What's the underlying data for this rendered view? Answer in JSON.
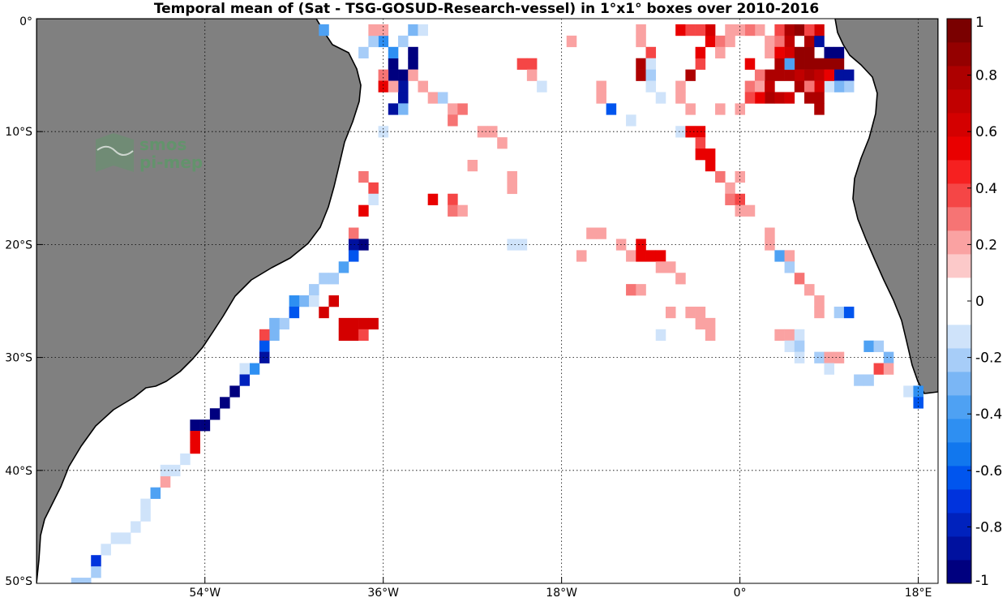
{
  "title": "Temporal mean of (Sat - TSG-GOSUD-Research-vessel) in 1°x1° boxes over 2010-2016",
  "logo": {
    "line1": "smos",
    "line2": "pi-mep",
    "color": "#5a9a66"
  },
  "map": {
    "lon_range": [
      -71,
      20
    ],
    "lat_range": [
      -50,
      0
    ],
    "land_color": "#808080",
    "coast_color": "#000000",
    "grid_style": "dotted",
    "x_ticks": [
      {
        "lon": -54,
        "label": "54°W"
      },
      {
        "lon": -36,
        "label": "36°W"
      },
      {
        "lon": -18,
        "label": "18°W"
      },
      {
        "lon": 0,
        "label": "0°"
      },
      {
        "lon": 18,
        "label": "18°E"
      }
    ],
    "y_ticks": [
      {
        "lat": 0,
        "label": "0°"
      },
      {
        "lat": -10,
        "label": "10°S"
      },
      {
        "lat": -20,
        "label": "20°S"
      },
      {
        "lat": -30,
        "label": "30°S"
      },
      {
        "lat": -40,
        "label": "40°S"
      },
      {
        "lat": -50,
        "label": "50°S"
      }
    ]
  },
  "colorbar": {
    "min": -1,
    "max": 1,
    "ticks": [
      {
        "value": 1,
        "label": "1"
      },
      {
        "value": 0.8,
        "label": "0.8"
      },
      {
        "value": 0.6,
        "label": "0.6"
      },
      {
        "value": 0.4,
        "label": "0.4"
      },
      {
        "value": 0.2,
        "label": "0.2"
      },
      {
        "value": 0,
        "label": "0"
      },
      {
        "value": -0.2,
        "label": "-0.2"
      },
      {
        "value": -0.4,
        "label": "-0.4"
      },
      {
        "value": -0.6,
        "label": "-0.6"
      },
      {
        "value": -0.8,
        "label": "-0.8"
      },
      {
        "value": -1,
        "label": "-1"
      }
    ],
    "colors_low_to_high": [
      "#00007f",
      "#00119f",
      "#0022bd",
      "#0033dd",
      "#0055ee",
      "#1177ee",
      "#2e8ff2",
      "#4ea1f3",
      "#7ab6f5",
      "#a7cdf8",
      "#cfe3fa",
      "#ffffff",
      "#ffffff",
      "#fcc9c9",
      "#faa2a2",
      "#f67474",
      "#f54646",
      "#f62020",
      "#e90000",
      "#d40000",
      "#c10000",
      "#ad0000",
      "#940000",
      "#7a0000"
    ]
  },
  "chart_data": {
    "type": "heatmap",
    "title": "Temporal mean of (Sat - TSG-GOSUD-Research-vessel) in 1°x1° boxes over 2010-2016",
    "value_range": [
      -1,
      1
    ],
    "cells_lon_lat_value": [
      [
        -35,
        -4,
        -1
      ],
      [
        -35,
        -5,
        -1
      ],
      [
        -34,
        -5,
        -1
      ],
      [
        -33,
        -3,
        -1
      ],
      [
        -33,
        -4,
        -1
      ],
      [
        -34,
        -6,
        -0.9
      ],
      [
        -34,
        -7,
        -0.9
      ],
      [
        -35,
        -8,
        -0.9
      ],
      [
        -34,
        -8,
        -0.3
      ],
      [
        -33,
        -1,
        -0.3
      ],
      [
        -34,
        -2,
        -0.2
      ],
      [
        -35,
        -3,
        -0.5
      ],
      [
        -36,
        -2,
        -0.5
      ],
      [
        -38,
        -3,
        -0.2
      ],
      [
        -37,
        -2,
        -0.2
      ],
      [
        -36,
        -10,
        -0.1
      ],
      [
        -32,
        -1,
        -0.1
      ],
      [
        -42,
        -1,
        -0.4
      ],
      [
        -36,
        -1,
        0.2
      ],
      [
        -37,
        -1,
        0.2
      ],
      [
        -36,
        -5,
        0.3
      ],
      [
        -36,
        -6,
        0.5
      ],
      [
        -35,
        -6,
        0.2
      ],
      [
        -33,
        -5,
        0.2
      ],
      [
        -32,
        -6,
        0.2
      ],
      [
        -31,
        -7,
        0.2
      ],
      [
        -30,
        -7,
        -0.2
      ],
      [
        -29,
        -8,
        0.2
      ],
      [
        -28,
        -8,
        0.3
      ],
      [
        -29,
        -9,
        0.3
      ],
      [
        -26,
        -10,
        0.2
      ],
      [
        -25,
        -10,
        0.2
      ],
      [
        -24,
        -11,
        0.2
      ],
      [
        -22,
        -4,
        0.4
      ],
      [
        -21,
        -4,
        0.4
      ],
      [
        -21,
        -5,
        0.2
      ],
      [
        -20,
        -6,
        -0.1
      ],
      [
        -17,
        -2,
        0.2
      ],
      [
        -14,
        -6,
        0.2
      ],
      [
        -14,
        -7,
        0.2
      ],
      [
        -13,
        -8,
        -0.6
      ],
      [
        -10,
        -1,
        0.2
      ],
      [
        -10,
        -2,
        0.2
      ],
      [
        -10,
        -4,
        0.8
      ],
      [
        -10,
        -5,
        0.8
      ],
      [
        -9,
        -3,
        0.4
      ],
      [
        -9,
        -4,
        -0.1
      ],
      [
        -9,
        -5,
        -0.2
      ],
      [
        -9,
        -6,
        -0.1
      ],
      [
        -8,
        -7,
        -0.1
      ],
      [
        -11,
        -9,
        -0.1
      ],
      [
        -6,
        -6,
        0.2
      ],
      [
        -6,
        -7,
        0.2
      ],
      [
        -5,
        -8,
        0.2
      ],
      [
        -5,
        -5,
        0.8
      ],
      [
        -4,
        -4,
        0.4
      ],
      [
        -4,
        -3,
        0.5
      ],
      [
        -3,
        -2,
        0.5
      ],
      [
        -3,
        -1,
        0.6
      ],
      [
        -2,
        -2,
        0.3
      ],
      [
        -2,
        -3,
        0.2
      ],
      [
        -1,
        -1,
        0.2
      ],
      [
        -1,
        -2,
        0.2
      ],
      [
        -6,
        -1,
        0.5
      ],
      [
        -5,
        -1,
        0.4
      ],
      [
        -4,
        -1,
        0.4
      ],
      [
        -2,
        -8,
        0.2
      ],
      [
        0,
        -8,
        0.2
      ],
      [
        -6,
        -10,
        -0.1
      ],
      [
        -5,
        -10,
        0.5
      ],
      [
        -4,
        -10,
        0.5
      ],
      [
        -4,
        -11,
        0.4
      ],
      [
        -4,
        -12,
        0.5
      ],
      [
        -3,
        -12,
        0.5
      ],
      [
        -3,
        -13,
        0.5
      ],
      [
        -2,
        -14,
        0.3
      ],
      [
        -1,
        -15,
        0.2
      ],
      [
        -1,
        -16,
        0.3
      ],
      [
        0,
        -16,
        0.4
      ],
      [
        0,
        -17,
        0.2
      ],
      [
        1,
        -17,
        0.2
      ],
      [
        0,
        -14,
        0.2
      ],
      [
        -7,
        -26,
        0.2
      ],
      [
        -5,
        -26,
        0.2
      ],
      [
        -4,
        -26,
        0.2
      ],
      [
        -3,
        -27,
        0.2
      ],
      [
        -4,
        -27,
        0.2
      ],
      [
        -3,
        -28,
        0.2
      ],
      [
        -8,
        -28,
        -0.1
      ],
      [
        -14,
        -19,
        0.2
      ],
      [
        -15,
        -19,
        0.2
      ],
      [
        -12,
        -20,
        0.2
      ],
      [
        -11,
        -21,
        0.2
      ],
      [
        -10,
        -20,
        0.5
      ],
      [
        -10,
        -21,
        0.5
      ],
      [
        -9,
        -21,
        0.5
      ],
      [
        -8,
        -21,
        0.5
      ],
      [
        -8,
        -22,
        0.2
      ],
      [
        -7,
        -22,
        0.2
      ],
      [
        -6,
        -23,
        0.2
      ],
      [
        -11,
        -24,
        0.3
      ],
      [
        -10,
        -24,
        0.2
      ],
      [
        -16,
        -21,
        0.2
      ],
      [
        -23,
        -20,
        -0.1
      ],
      [
        -22,
        -20,
        -0.1
      ],
      [
        -31,
        -16,
        0.5
      ],
      [
        -29,
        -16,
        0.4
      ],
      [
        -29,
        -17,
        0.3
      ],
      [
        -28,
        -17,
        0.2
      ],
      [
        -27,
        -13,
        0.2
      ],
      [
        -23,
        -14,
        0.2
      ],
      [
        -23,
        -15,
        0.2
      ],
      [
        -38,
        -14,
        0.3
      ],
      [
        -37,
        -15,
        0.4
      ],
      [
        -38,
        -17,
        0.5
      ],
      [
        -37,
        -16,
        -0.1
      ],
      [
        -39,
        -19,
        0.3
      ],
      [
        -38,
        -20,
        -1
      ],
      [
        -39,
        -20,
        -0.9
      ],
      [
        -39,
        -21,
        -0.6
      ],
      [
        -40,
        -22,
        -0.4
      ],
      [
        -41,
        -23,
        -0.2
      ],
      [
        -42,
        -23,
        -0.2
      ],
      [
        -43,
        -24,
        -0.2
      ],
      [
        -44,
        -25,
        -0.3
      ],
      [
        -43,
        -25,
        -0.1
      ],
      [
        -45,
        -25,
        -0.5
      ],
      [
        -45,
        -26,
        -0.6
      ],
      [
        -46,
        -27,
        -0.2
      ],
      [
        -47,
        -27,
        -0.3
      ],
      [
        -47,
        -28,
        -0.3
      ],
      [
        -48,
        -28,
        0.4
      ],
      [
        -48,
        -29,
        -0.6
      ],
      [
        -48,
        -30,
        -0.9
      ],
      [
        -49,
        -31,
        -0.5
      ],
      [
        -50,
        -31,
        -0.1
      ],
      [
        -50,
        -32,
        -0.8
      ],
      [
        -51,
        -33,
        -1
      ],
      [
        -52,
        -34,
        -1
      ],
      [
        -53,
        -35,
        -1
      ],
      [
        -54,
        -36,
        -1
      ],
      [
        -55,
        -36,
        -1
      ],
      [
        -55,
        -37,
        0.5
      ],
      [
        -55,
        -38,
        0.5
      ],
      [
        -56,
        -39,
        -0.1
      ],
      [
        -57,
        -40,
        -0.1
      ],
      [
        -58,
        -41,
        0.2
      ],
      [
        -58,
        -40,
        -0.1
      ],
      [
        -59,
        -42,
        -0.4
      ],
      [
        -60,
        -43,
        -0.1
      ],
      [
        -60,
        -44,
        -0.1
      ],
      [
        -61,
        -45,
        -0.1
      ],
      [
        -62,
        -46,
        -0.1
      ],
      [
        -63,
        -46,
        -0.1
      ],
      [
        -64,
        -47,
        -0.1
      ],
      [
        -65,
        -48,
        -0.7
      ],
      [
        -65,
        -49,
        -0.2
      ],
      [
        -66,
        -50,
        -0.2
      ],
      [
        -67,
        -50,
        -0.2
      ],
      [
        -42,
        -26,
        0.6
      ],
      [
        -41,
        -25,
        0.6
      ],
      [
        -40,
        -27,
        0.6
      ],
      [
        -39,
        -27,
        0.6
      ],
      [
        -38,
        -27,
        0.6
      ],
      [
        -37,
        -27,
        0.6
      ],
      [
        -40,
        -28,
        0.6
      ],
      [
        -39,
        -28,
        0.6
      ],
      [
        -38,
        -28,
        0.4
      ],
      [
        3,
        -2,
        0.2
      ],
      [
        3,
        -3,
        0.2
      ],
      [
        4,
        -2,
        0.3
      ],
      [
        4,
        -1,
        0.4
      ],
      [
        4,
        -4,
        0.8
      ],
      [
        5,
        -1,
        0.8
      ],
      [
        5,
        -2,
        0.7
      ],
      [
        5,
        -3,
        0.6
      ],
      [
        6,
        -1,
        0.9
      ],
      [
        6,
        -3,
        0.9
      ],
      [
        6,
        -4,
        0.9
      ],
      [
        7,
        -3,
        0.9
      ],
      [
        7,
        -4,
        0.9
      ],
      [
        8,
        -4,
        0.9
      ],
      [
        9,
        -4,
        0.9
      ],
      [
        10,
        -4,
        0.9
      ],
      [
        7,
        -2,
        0.8
      ],
      [
        8,
        -2,
        -0.9
      ],
      [
        9,
        -3,
        -1
      ],
      [
        10,
        -5,
        -0.9
      ],
      [
        11,
        -5,
        -0.9
      ],
      [
        11,
        -6,
        -0.2
      ],
      [
        10,
        -6,
        -0.3
      ],
      [
        9,
        -6,
        -0.1
      ],
      [
        8,
        -1,
        0.6
      ],
      [
        7,
        -1,
        0.4
      ],
      [
        6,
        -5,
        0.7
      ],
      [
        6,
        -6,
        0.8
      ],
      [
        5,
        -5,
        0.8
      ],
      [
        4,
        -5,
        0.8
      ],
      [
        3,
        -5,
        0.8
      ],
      [
        2,
        -5,
        0.3
      ],
      [
        1,
        -4,
        0.5
      ],
      [
        1,
        -6,
        0.3
      ],
      [
        2,
        -6,
        0.2
      ],
      [
        3,
        -6,
        0.7
      ],
      [
        3,
        -7,
        0.8
      ],
      [
        4,
        -7,
        0.7
      ],
      [
        5,
        -7,
        0.6
      ],
      [
        7,
        -5,
        0.8
      ],
      [
        8,
        -5,
        0.7
      ],
      [
        8,
        -6,
        0.6
      ],
      [
        7,
        -6,
        0.3
      ],
      [
        7,
        -7,
        0.8
      ],
      [
        8,
        -7,
        0.8
      ],
      [
        8,
        -8,
        0.8
      ],
      [
        2,
        -7,
        0.5
      ],
      [
        1,
        -7,
        0.4
      ],
      [
        5,
        -4,
        -0.4
      ],
      [
        4,
        -3,
        0.5
      ],
      [
        9,
        -5,
        0.5
      ],
      [
        10,
        -3,
        -1
      ],
      [
        2,
        -1,
        0.2
      ],
      [
        1,
        -1,
        0.3
      ],
      [
        0,
        -1,
        0.2
      ],
      [
        3,
        -19,
        0.2
      ],
      [
        3,
        -20,
        0.2
      ],
      [
        4,
        -21,
        -0.4
      ],
      [
        5,
        -21,
        0.2
      ],
      [
        5,
        -22,
        -0.2
      ],
      [
        6,
        -23,
        0.3
      ],
      [
        7,
        -24,
        0.2
      ],
      [
        8,
        -25,
        0.2
      ],
      [
        8,
        -26,
        0.2
      ],
      [
        10,
        -26,
        -0.2
      ],
      [
        11,
        -26,
        -0.6
      ],
      [
        4,
        -28,
        0.2
      ],
      [
        5,
        -28,
        0.2
      ],
      [
        6,
        -28,
        -0.1
      ],
      [
        5,
        -29,
        -0.1
      ],
      [
        6,
        -29,
        -0.2
      ],
      [
        6,
        -30,
        -0.1
      ],
      [
        8,
        -30,
        -0.2
      ],
      [
        9,
        -30,
        0.2
      ],
      [
        10,
        -30,
        0.2
      ],
      [
        9,
        -31,
        -0.1
      ],
      [
        13,
        -29,
        -0.4
      ],
      [
        14,
        -29,
        -0.2
      ],
      [
        15,
        -30,
        -0.3
      ],
      [
        14,
        -31,
        0.4
      ],
      [
        15,
        -31,
        0.2
      ],
      [
        12,
        -32,
        -0.2
      ],
      [
        13,
        -32,
        -0.2
      ],
      [
        17,
        -33,
        -0.1
      ],
      [
        18,
        -33,
        -0.5
      ],
      [
        18,
        -34,
        -0.6
      ]
    ]
  }
}
